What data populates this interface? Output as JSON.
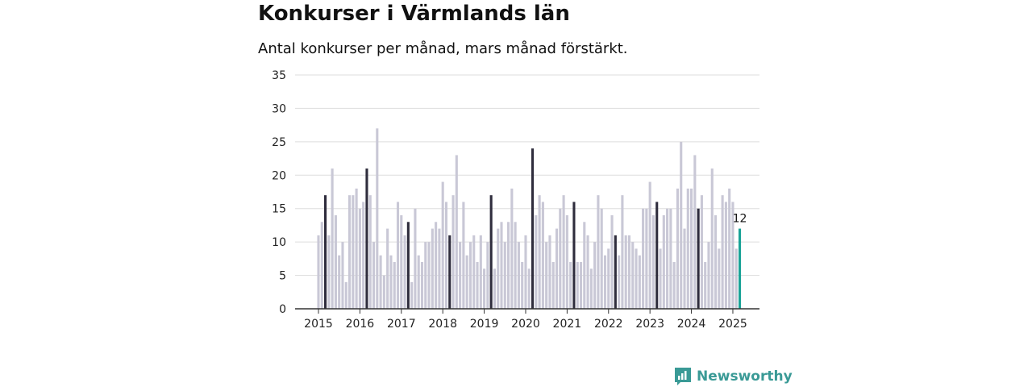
{
  "header": {
    "title": "Konkurser i Värmlands län",
    "subtitle": "Antal konkurser per månad, mars månad förstärkt."
  },
  "brand": {
    "name": "Newsworthy"
  },
  "colors": {
    "bar": "#c9c8d6",
    "highlight": "#2f2d3d",
    "latest": "#1aa397",
    "grid": "#dddddd",
    "axis": "#333333",
    "brand": "#3a9a96"
  },
  "chart_data": {
    "type": "bar",
    "title": "Konkurser i Värmlands län",
    "subtitle": "Antal konkurser per månad, mars månad förstärkt.",
    "xlabel": "",
    "ylabel": "",
    "ylim": [
      0,
      35
    ],
    "yticks": [
      0,
      5,
      10,
      15,
      20,
      25,
      30,
      35
    ],
    "xticks": [
      "2015",
      "2016",
      "2017",
      "2018",
      "2019",
      "2020",
      "2021",
      "2022",
      "2023",
      "2024",
      "2025"
    ],
    "grid": true,
    "start": "2015-01",
    "highlight_month": "mars",
    "latest_label": "12",
    "values": [
      11,
      13,
      17,
      11,
      21,
      14,
      8,
      10,
      4,
      17,
      17,
      18,
      15,
      16,
      21,
      17,
      10,
      27,
      8,
      5,
      12,
      8,
      7,
      16,
      14,
      11,
      13,
      4,
      15,
      8,
      7,
      10,
      10,
      12,
      13,
      12,
      19,
      16,
      11,
      17,
      23,
      10,
      16,
      8,
      10,
      11,
      7,
      11,
      6,
      10,
      17,
      6,
      12,
      13,
      10,
      13,
      18,
      13,
      10,
      7,
      11,
      6,
      24,
      14,
      17,
      16,
      10,
      11,
      7,
      12,
      15,
      17,
      14,
      7,
      16,
      7,
      7,
      13,
      11,
      6,
      10,
      17,
      15,
      8,
      9,
      14,
      11,
      8,
      17,
      11,
      11,
      10,
      9,
      8,
      15,
      15,
      19,
      14,
      16,
      9,
      14,
      15,
      15,
      7,
      18,
      25,
      12,
      18,
      18,
      23,
      15,
      17,
      7,
      10,
      21,
      14,
      9,
      17,
      16,
      18,
      16,
      9,
      12
    ]
  }
}
